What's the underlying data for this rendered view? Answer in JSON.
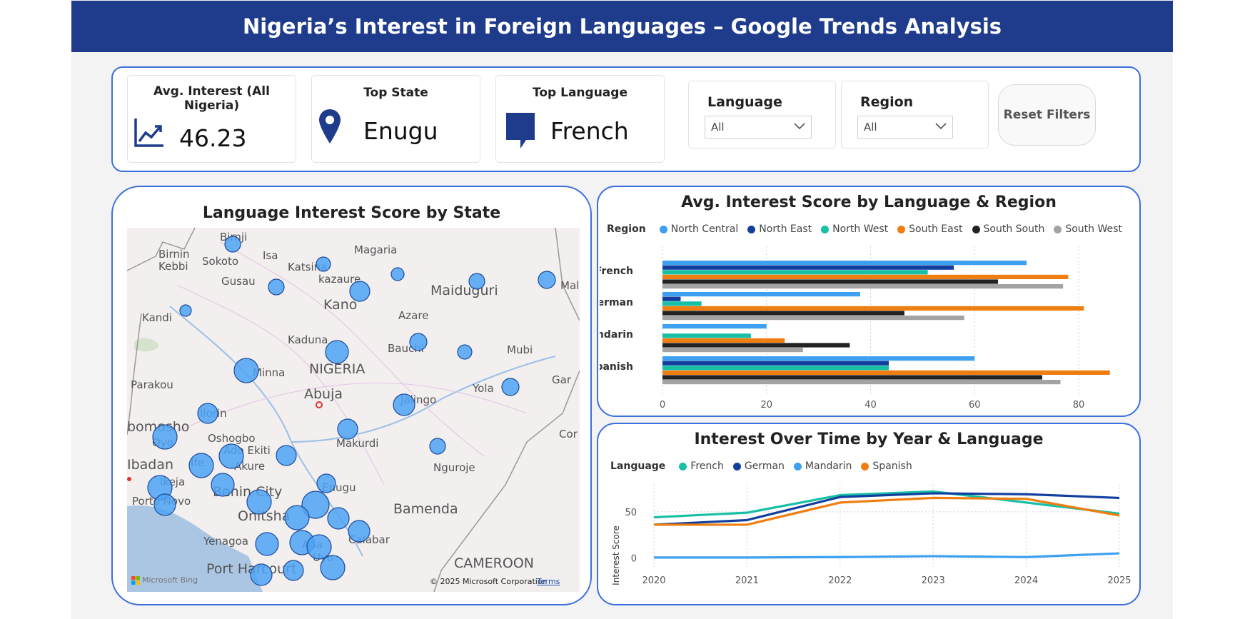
{
  "title": "Nigeria’s Interest in Foreign Languages  – Google Trends Analysis",
  "kpis": {
    "avg_interest": {
      "label": "Avg. Interest (All Nigeria)",
      "value": "46.23"
    },
    "top_state": {
      "label": "Top State",
      "value": "Enugu"
    },
    "top_language": {
      "label": "Top Language",
      "value": "French"
    }
  },
  "slicers": {
    "language": {
      "label": "Language",
      "value": "All"
    },
    "region": {
      "label": "Region",
      "value": "All"
    }
  },
  "reset_label": "Reset Filters",
  "map": {
    "title": "Language Interest Score by State",
    "places": [
      "Birnin",
      "Kebbi",
      "Sokoto",
      "Isa",
      "Magaria",
      "Katsina",
      "kazaure",
      "Gusau",
      "Kano",
      "Maiduguri",
      "Kandi",
      "Azare",
      "Kaduna",
      "Bauchi",
      "Mubi",
      "NIGERIA",
      "Minna",
      "Parakou",
      "Abuja",
      "Jalingo",
      "Yola",
      "Ilorin",
      "bomosho",
      "Oyo",
      "Oshogbo",
      "Ado Ekiti",
      "Makurdi",
      "Ibadan",
      "Ife",
      "Akure",
      "Ikeja",
      "Nguroje",
      "Benin City",
      "Enugu",
      "Porto Novo",
      "Onitsha",
      "Bamenda",
      "Yenagoa",
      "Aba",
      "Calabar",
      "Uyo",
      "Port Harcourt",
      "CAMEROON",
      "Gar",
      "Mal",
      "Birnji",
      "Cor urba de N"
    ],
    "bing_label": "Microsoft Bing",
    "copyright": "© 2025 Microsoft Corporation",
    "terms": "Terms",
    "bubble_color": "#4da3f5"
  },
  "bar_chart": {
    "title": "Avg. Interest Score by Language & Region",
    "legend_title": "Region"
  },
  "line_chart": {
    "title": "Interest Over Time by Year & Language",
    "legend_title": "Language"
  },
  "chart_data": [
    {
      "type": "bar",
      "orientation": "horizontal",
      "title": "Avg. Interest Score by Language & Region",
      "categories": [
        "French",
        "German",
        "Mandarin",
        "Spanish"
      ],
      "series": [
        {
          "name": "North Central",
          "color": "#3ea0f0",
          "values": [
            70,
            38,
            20,
            60
          ]
        },
        {
          "name": "North East",
          "color": "#123f9e",
          "values": [
            56,
            3.5,
            0,
            43.5
          ]
        },
        {
          "name": "North West",
          "color": "#17bfa5",
          "values": [
            51,
            7.5,
            17,
            43.5
          ]
        },
        {
          "name": "South East",
          "color": "#f07d10",
          "values": [
            78,
            81,
            23.5,
            86
          ]
        },
        {
          "name": "South South",
          "color": "#222222",
          "values": [
            64.5,
            46.5,
            36,
            73
          ]
        },
        {
          "name": "South West",
          "color": "#a3a3a3",
          "values": [
            77,
            58,
            27,
            76.5
          ]
        }
      ],
      "xticks": [
        "0",
        "20",
        "40",
        "60",
        "80"
      ],
      "xlim": [
        0,
        90
      ]
    },
    {
      "type": "line",
      "title": "Interest Over Time by Year & Language",
      "ylabel": "Interest Score",
      "x": [
        "2020",
        "2021",
        "2022",
        "2023",
        "2024",
        "2025"
      ],
      "yticks": [
        "0",
        "50"
      ],
      "ylim": [
        -5,
        80
      ],
      "series": [
        {
          "name": "French",
          "color": "#17bfa5",
          "values": [
            44,
            49,
            68,
            72,
            60,
            48
          ]
        },
        {
          "name": "German",
          "color": "#123f9e",
          "values": [
            36,
            41,
            66,
            70,
            69,
            65
          ]
        },
        {
          "name": "Mandarin",
          "color": "#3ea0f0",
          "values": [
            0.5,
            0.5,
            1,
            2,
            1,
            5
          ]
        },
        {
          "name": "Spanish",
          "color": "#f07d10",
          "values": [
            36,
            36,
            60,
            65,
            64,
            46
          ]
        }
      ]
    }
  ]
}
